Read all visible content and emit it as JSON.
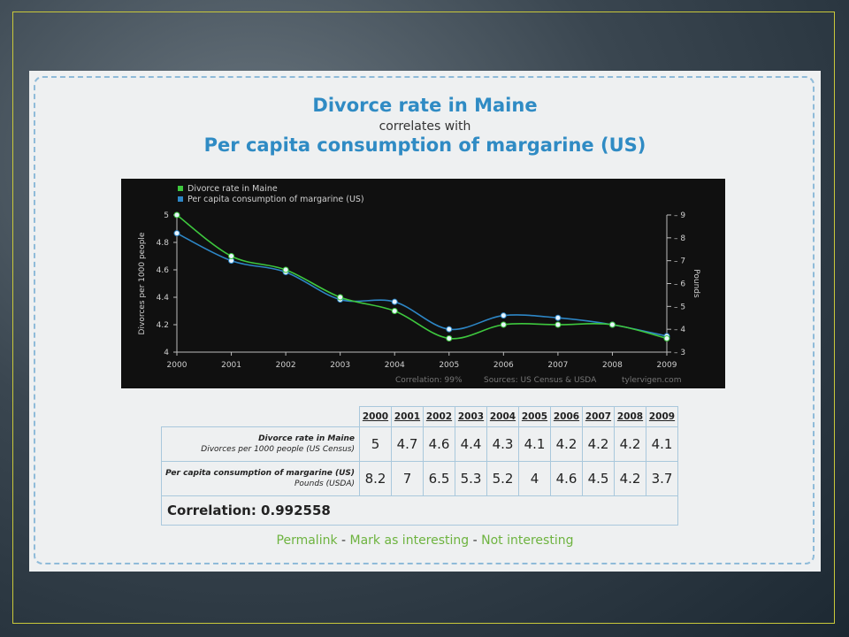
{
  "titles": {
    "line1": "Divorce rate in Maine",
    "line2": "correlates with",
    "line3": "Per capita consumption of margarine (US)"
  },
  "chart_data": {
    "type": "line",
    "categories": [
      "2000",
      "2001",
      "2002",
      "2003",
      "2004",
      "2005",
      "2006",
      "2007",
      "2008",
      "2009"
    ],
    "series": [
      {
        "name": "Divorce rate in Maine",
        "axis": "left",
        "color": "#3ec83e",
        "values": [
          5,
          4.7,
          4.6,
          4.4,
          4.3,
          4.1,
          4.2,
          4.2,
          4.2,
          4.1
        ]
      },
      {
        "name": "Per capita consumption of margarine (US)",
        "axis": "right",
        "color": "#2d86c6",
        "values": [
          8.2,
          7,
          6.5,
          5.3,
          5.2,
          4,
          4.6,
          4.5,
          4.2,
          3.7
        ]
      }
    ],
    "ylabel": "Divorces per 1000 people",
    "y2label": "Pounds",
    "ylim": [
      4,
      5
    ],
    "y2lim": [
      3,
      9
    ],
    "yticks": [
      "4",
      "4.2",
      "4.4",
      "4.6",
      "4.8",
      "5"
    ],
    "y2ticks": [
      "3",
      "4",
      "5",
      "6",
      "7",
      "8",
      "9"
    ],
    "legend_position": "top-left",
    "grid": false,
    "footer_correlation": "Correlation: 99%",
    "footer_sources": "Sources: US Census & USDA",
    "footer_site": "tylervigen.com"
  },
  "table": {
    "years": [
      "2000",
      "2001",
      "2002",
      "2003",
      "2004",
      "2005",
      "2006",
      "2007",
      "2008",
      "2009"
    ],
    "row1_label": "Divorce rate in Maine",
    "row1_sublabel": "Divorces per 1000 people (US Census)",
    "row1_values": [
      "5",
      "4.7",
      "4.6",
      "4.4",
      "4.3",
      "4.1",
      "4.2",
      "4.2",
      "4.2",
      "4.1"
    ],
    "row2_label": "Per capita consumption of margarine (US)",
    "row2_sublabel": "Pounds (USDA)",
    "row2_values": [
      "8.2",
      "7",
      "6.5",
      "5.3",
      "5.2",
      "4",
      "4.6",
      "4.5",
      "4.2",
      "3.7"
    ],
    "correlation": "Correlation: 0.992558"
  },
  "links": {
    "permalink": "Permalink",
    "sep": " - ",
    "mark": "Mark as interesting",
    "not": "Not interesting"
  }
}
